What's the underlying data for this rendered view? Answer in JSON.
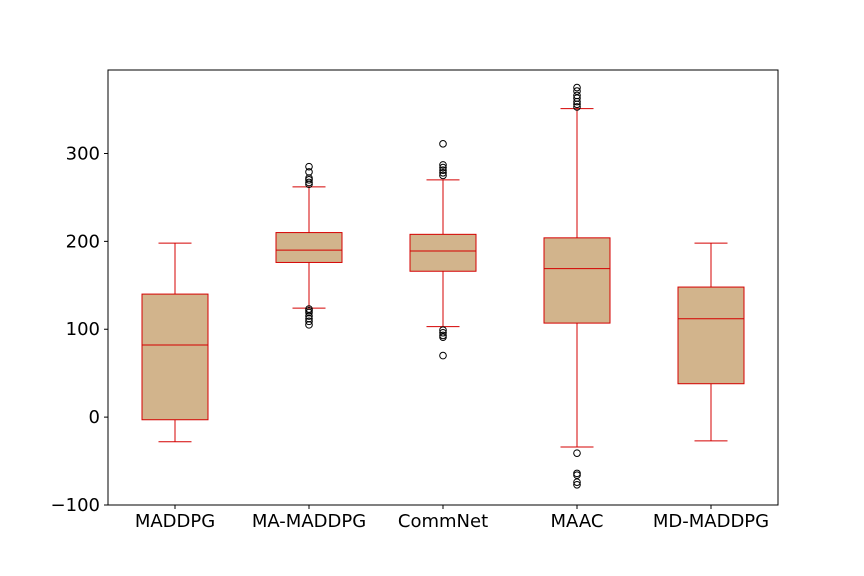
{
  "chart_data": {
    "type": "box",
    "title": "",
    "xlabel": "",
    "ylabel": "",
    "ylim": [
      -100,
      395
    ],
    "yticks": [
      -100,
      0,
      100,
      200,
      300
    ],
    "ytick_labels": [
      "−100",
      "0",
      "100",
      "200",
      "300"
    ],
    "grid": false,
    "categories": [
      "MADDPG",
      "MA-MADDPG",
      "CommNet",
      "MAAC",
      "MD-MADDPG"
    ],
    "box_fill_color": "#d2b48c",
    "line_color": "#d40000",
    "outlier_color": "#000000",
    "boxes": [
      {
        "label": "MADDPG",
        "whisker_low": -28,
        "q1": -3,
        "median": 82,
        "q3": 140,
        "whisker_high": 198,
        "outliers": []
      },
      {
        "label": "MA-MADDPG",
        "whisker_low": 124,
        "q1": 176,
        "median": 190,
        "q3": 210,
        "whisker_high": 262,
        "outliers": [
          105,
          109,
          112,
          115,
          119,
          121,
          123,
          265,
          267,
          270,
          272,
          279,
          285
        ]
      },
      {
        "label": "CommNet",
        "whisker_low": 103,
        "q1": 166,
        "median": 189,
        "q3": 208,
        "whisker_high": 270,
        "outliers": [
          70,
          91,
          93,
          96,
          99,
          275,
          278,
          281,
          284,
          287,
          311
        ]
      },
      {
        "label": "MAAC",
        "whisker_low": -34,
        "q1": 107,
        "median": 169,
        "q3": 204,
        "whisker_high": 351,
        "outliers": [
          -77,
          -74,
          -66,
          -64,
          -41,
          353,
          356,
          359,
          363,
          366,
          371,
          375
        ]
      },
      {
        "label": "MD-MADDPG",
        "whisker_low": -27,
        "q1": 38,
        "median": 112,
        "q3": 148,
        "whisker_high": 198,
        "outliers": []
      }
    ]
  }
}
